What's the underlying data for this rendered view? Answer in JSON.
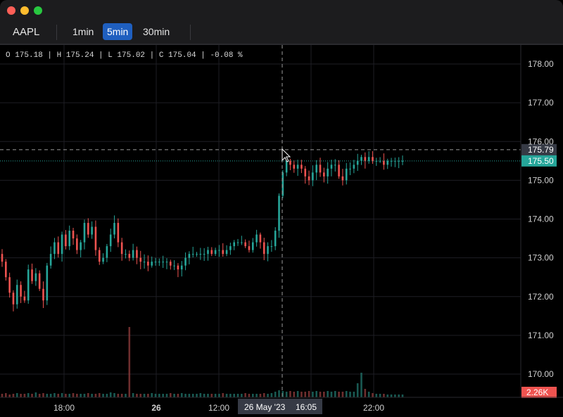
{
  "toolbar": {
    "symbol": "AAPL",
    "intervals": [
      "1min",
      "5min",
      "30min"
    ],
    "active_interval": "5min"
  },
  "legend": {
    "text": "O 175.18 | H 175.24 | L 175.02 | C 175.04 | -0.08 %"
  },
  "chart_data": {
    "type": "candlestick",
    "symbol": "AAPL",
    "interval": "5min",
    "ohlc_legend": {
      "open": 175.18,
      "high": 175.24,
      "low": 175.02,
      "close": 175.04,
      "change_pct": -0.08
    },
    "y_ticks": [
      170.0,
      171.0,
      172.0,
      173.0,
      174.0,
      175.0,
      176.0,
      177.0,
      178.0
    ],
    "y_tick_labels": [
      "170.00",
      "171.00",
      "172.00",
      "173.00",
      "174.00",
      "175.00",
      "176.00",
      "177.00",
      "178.00"
    ],
    "ylim": [
      169.6,
      178.5
    ],
    "x_tick_labels": [
      "18:00",
      "26",
      "12:00",
      "22:00"
    ],
    "crosshair": {
      "price_label": "175.79",
      "time_label": "26 May '23",
      "time_label2": "16:05",
      "price": 175.79
    },
    "last_price": {
      "label": "175.50",
      "value": 175.5,
      "color": "#26a69a"
    },
    "volume_label": {
      "label": "2.26K",
      "color": "#ef5350"
    },
    "price_path": [
      172.9,
      172.5,
      172.1,
      171.8,
      172.3,
      172.0,
      171.9,
      172.7,
      172.4,
      172.6,
      172.2,
      171.9,
      172.8,
      173.1,
      173.4,
      173.1,
      173.6,
      173.3,
      173.7,
      173.5,
      173.2,
      173.4,
      173.9,
      173.6,
      173.8,
      173.2,
      172.9,
      173.0,
      173.3,
      173.6,
      173.9,
      173.4,
      173.1,
      173.1,
      173.0,
      173.2,
      173.0,
      172.9,
      172.9,
      172.8,
      172.9,
      172.9,
      172.9,
      172.9,
      172.9,
      172.8,
      172.8,
      172.7,
      172.8,
      173.0,
      173.1,
      173.1,
      173.1,
      173.1,
      173.1,
      173.2,
      173.1,
      173.2,
      173.2,
      173.1,
      173.2,
      173.3,
      173.4,
      173.4,
      173.4,
      173.3,
      173.2,
      173.4,
      173.6,
      173.4,
      173.1,
      173.3,
      173.3,
      173.7,
      174.6,
      175.2,
      175.5,
      175.4,
      175.3,
      175.4,
      175.3,
      175.1,
      175.0,
      175.2,
      175.4,
      175.2,
      175.1,
      175.3,
      175.4,
      175.4,
      175.1,
      175.0,
      175.3,
      175.3,
      175.4,
      175.5,
      175.6,
      175.5,
      175.6,
      175.5,
      175.5,
      175.5,
      175.4,
      175.5,
      175.5,
      175.5,
      175.5,
      175.5
    ],
    "volume_path": [
      0.05,
      0.06,
      0.04,
      0.05,
      0.06,
      0.05,
      0.05,
      0.06,
      0.05,
      0.07,
      0.05,
      0.06,
      0.05,
      0.05,
      0.06,
      0.05,
      0.06,
      0.05,
      0.05,
      0.06,
      0.05,
      0.05,
      0.05,
      0.06,
      0.05,
      0.05,
      0.06,
      0.05,
      0.05,
      0.07,
      0.06,
      0.05,
      0.05,
      0.05,
      1.0,
      0.06,
      0.05,
      0.05,
      0.05,
      0.05,
      0.06,
      0.05,
      0.05,
      0.05,
      0.05,
      0.06,
      0.05,
      0.05,
      0.06,
      0.05,
      0.05,
      0.05,
      0.05,
      0.06,
      0.05,
      0.05,
      0.05,
      0.05,
      0.05,
      0.06,
      0.05,
      0.05,
      0.05,
      0.05,
      0.05,
      0.06,
      0.05,
      0.05,
      0.05,
      0.05,
      0.06,
      0.05,
      0.06,
      0.08,
      0.1,
      0.09,
      0.08,
      0.09,
      0.08,
      0.09,
      0.08,
      0.08,
      0.09,
      0.08,
      0.09,
      0.08,
      0.08,
      0.09,
      0.08,
      0.09,
      0.08,
      0.08,
      0.09,
      0.08,
      0.08,
      0.2,
      0.35,
      0.12,
      0.08,
      0.06,
      0.05,
      0.05,
      0.05,
      0.04,
      0.04,
      0.04,
      0.04,
      0.04
    ]
  }
}
